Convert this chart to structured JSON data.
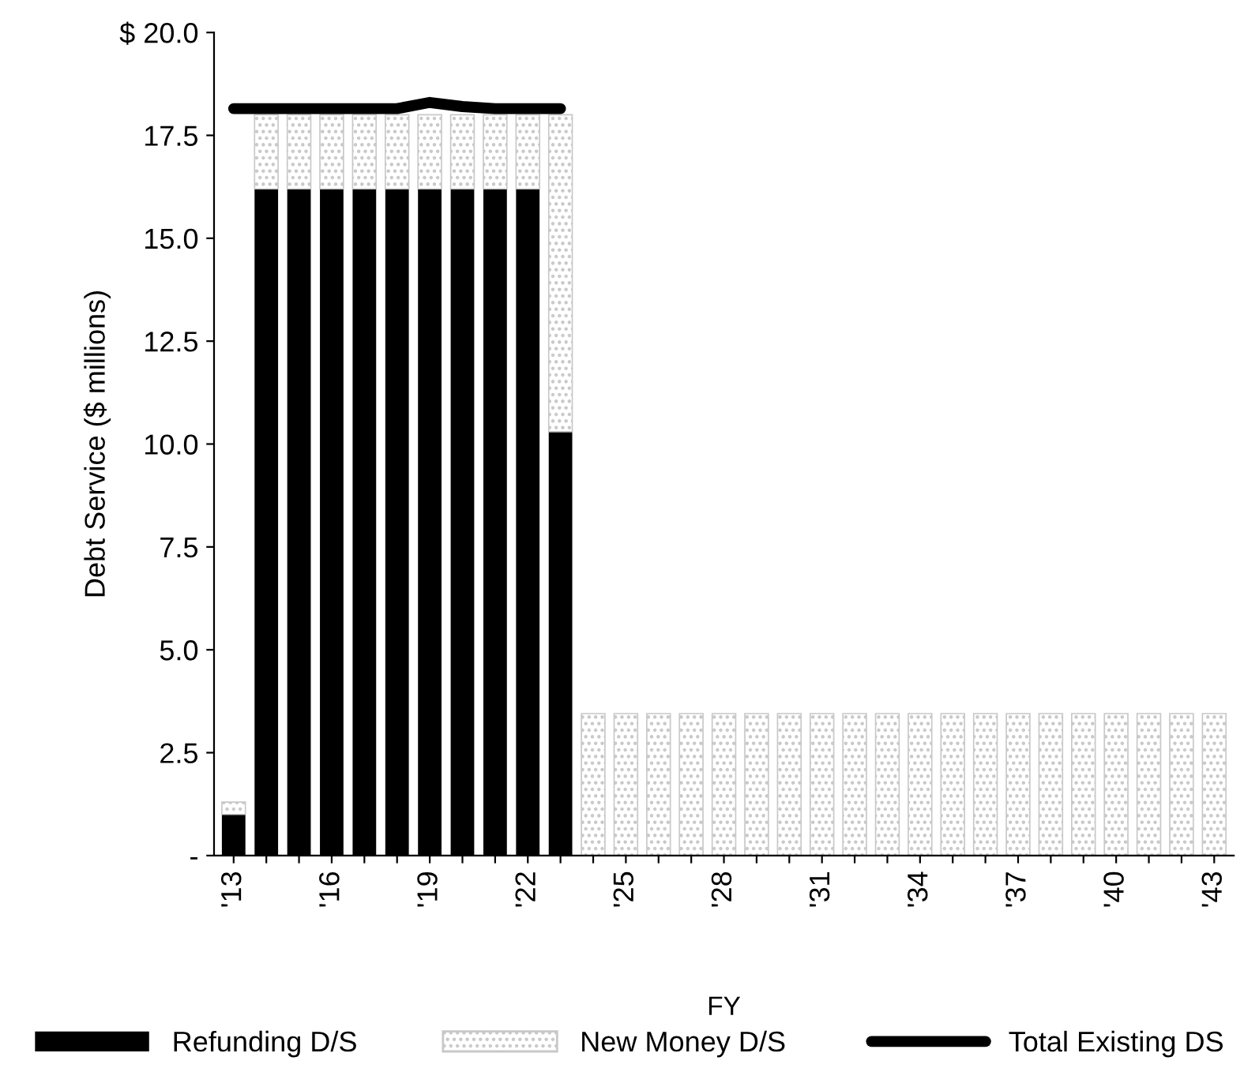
{
  "chart_data": {
    "type": "bar",
    "stacked": true,
    "xlabel": "FY",
    "ylabel": "Debt Service ($ millions)",
    "categories": [
      "'13",
      null,
      null,
      "'16",
      null,
      null,
      "'19",
      null,
      null,
      "'22",
      null,
      null,
      "'25",
      null,
      null,
      "'28",
      null,
      null,
      "'31",
      null,
      null,
      "'34",
      null,
      null,
      "'37",
      null,
      null,
      "'40",
      null,
      null,
      "'43"
    ],
    "series": [
      {
        "name": "Refunding D/S",
        "color": "#000000",
        "values": [
          1.0,
          16.2,
          16.2,
          16.2,
          16.2,
          16.2,
          16.2,
          16.2,
          16.2,
          16.2,
          10.3,
          0,
          0,
          0,
          0,
          0,
          0,
          0,
          0,
          0,
          0,
          0,
          0,
          0,
          0,
          0,
          0,
          0,
          0,
          0,
          0
        ]
      },
      {
        "name": "New Money D/S",
        "color": "#c8c8c8",
        "values": [
          0.3,
          1.8,
          1.8,
          1.8,
          1.8,
          1.8,
          1.8,
          1.8,
          1.8,
          1.8,
          7.7,
          3.45,
          3.45,
          3.45,
          3.45,
          3.45,
          3.45,
          3.45,
          3.45,
          3.45,
          3.45,
          3.45,
          3.45,
          3.45,
          3.45,
          3.45,
          3.45,
          3.45,
          3.45,
          3.45,
          3.45
        ]
      },
      {
        "name": "Total Existing DS",
        "type": "line",
        "color": "#000000",
        "values": [
          18.15,
          18.15,
          18.15,
          18.15,
          18.15,
          18.15,
          18.3,
          18.2,
          18.15,
          18.15,
          18.15,
          null,
          null,
          null,
          null,
          null,
          null,
          null,
          null,
          null,
          null,
          null,
          null,
          null,
          null,
          null,
          null,
          null,
          null,
          null,
          null
        ]
      }
    ],
    "ylim": [
      0,
      20
    ],
    "yticks": [
      {
        "value": 0,
        "label": "-"
      },
      2.5,
      {
        "value": 5,
        "label": "5.0"
      },
      7.5,
      {
        "value": 10,
        "label": "10.0"
      },
      12.5,
      {
        "value": 15,
        "label": "15.0"
      },
      17.5,
      {
        "value": 20,
        "label": "$ 20.0"
      }
    ],
    "legend": "bottom",
    "grid": false
  }
}
